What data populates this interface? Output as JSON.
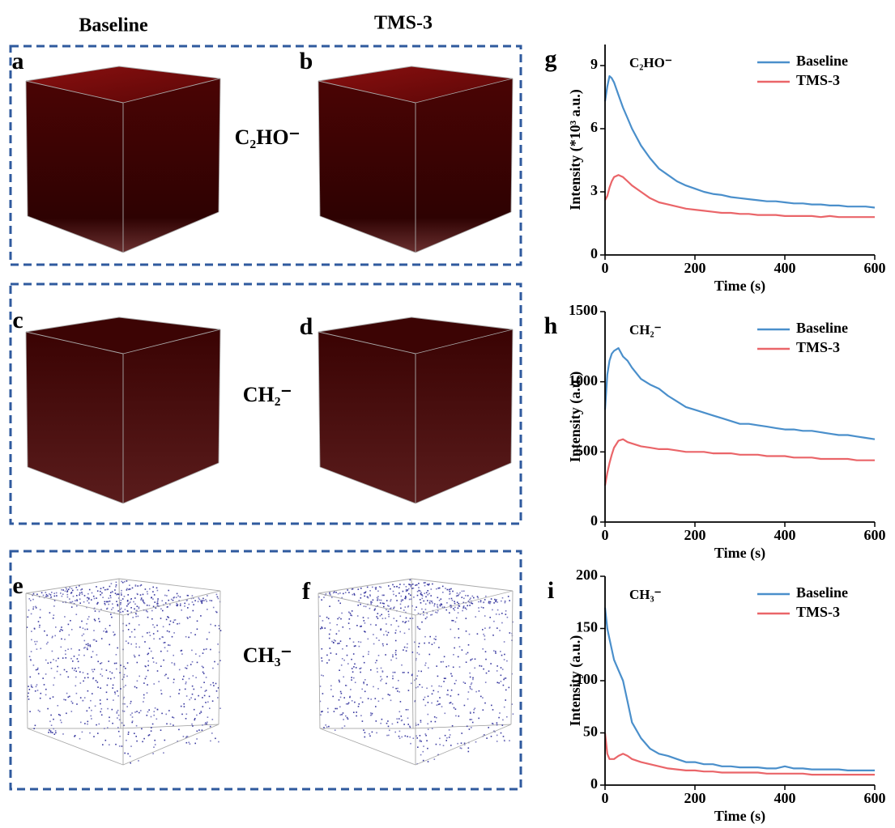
{
  "column_headers": [
    "Baseline",
    "TMS-3"
  ],
  "panels": [
    "a",
    "b",
    "c",
    "d",
    "e",
    "f"
  ],
  "ions": [
    "C₂HO⁻",
    "CH₂⁻",
    "CH₃⁻"
  ],
  "chart_data": [
    {
      "type": "line",
      "panel": "g",
      "annotation": "C₂HO⁻",
      "xlabel": "Time (s)",
      "ylabel": "Intensity (*10³ a.u.)",
      "x": [
        0,
        5,
        10,
        15,
        20,
        30,
        40,
        50,
        60,
        80,
        100,
        120,
        140,
        160,
        180,
        200,
        220,
        240,
        260,
        280,
        300,
        320,
        340,
        360,
        380,
        400,
        420,
        440,
        460,
        480,
        500,
        520,
        540,
        560,
        580,
        600
      ],
      "series": [
        {
          "name": "Baseline",
          "color": "#4a8fcb",
          "values": [
            7.3,
            8.0,
            8.5,
            8.4,
            8.2,
            7.6,
            7.0,
            6.5,
            6.0,
            5.2,
            4.6,
            4.1,
            3.8,
            3.5,
            3.3,
            3.15,
            3.0,
            2.9,
            2.85,
            2.75,
            2.7,
            2.65,
            2.6,
            2.55,
            2.55,
            2.5,
            2.45,
            2.45,
            2.4,
            2.4,
            2.35,
            2.35,
            2.3,
            2.3,
            2.3,
            2.25
          ]
        },
        {
          "name": "TMS-3",
          "color": "#ea6569",
          "values": [
            2.6,
            2.8,
            3.2,
            3.5,
            3.7,
            3.8,
            3.7,
            3.5,
            3.3,
            3.0,
            2.7,
            2.5,
            2.4,
            2.3,
            2.2,
            2.15,
            2.1,
            2.05,
            2.0,
            2.0,
            1.95,
            1.95,
            1.9,
            1.9,
            1.9,
            1.85,
            1.85,
            1.85,
            1.85,
            1.8,
            1.85,
            1.8,
            1.8,
            1.8,
            1.8,
            1.8
          ]
        }
      ],
      "xlim": [
        0,
        600
      ],
      "xticks": [
        0,
        200,
        400,
        600
      ],
      "ylim": [
        0,
        10
      ],
      "yticks": [
        0,
        3,
        6,
        9
      ],
      "legend": "upper right"
    },
    {
      "type": "line",
      "panel": "h",
      "annotation": "CH₂⁻",
      "xlabel": "Time (s)",
      "ylabel": "Intensity (a.u.)",
      "x": [
        0,
        5,
        10,
        15,
        20,
        30,
        40,
        50,
        60,
        80,
        100,
        120,
        140,
        160,
        180,
        200,
        220,
        240,
        260,
        280,
        300,
        320,
        340,
        360,
        380,
        400,
        420,
        440,
        460,
        480,
        500,
        520,
        540,
        560,
        580,
        600
      ],
      "series": [
        {
          "name": "Baseline",
          "color": "#4a8fcb",
          "values": [
            800,
            1050,
            1150,
            1200,
            1220,
            1240,
            1180,
            1150,
            1100,
            1020,
            980,
            950,
            900,
            860,
            820,
            800,
            780,
            760,
            740,
            720,
            700,
            700,
            690,
            680,
            670,
            660,
            660,
            650,
            650,
            640,
            630,
            620,
            620,
            610,
            600,
            590
          ]
        },
        {
          "name": "TMS-3",
          "color": "#ea6569",
          "values": [
            260,
            350,
            420,
            480,
            530,
            580,
            590,
            570,
            560,
            540,
            530,
            520,
            520,
            510,
            500,
            500,
            500,
            490,
            490,
            490,
            480,
            480,
            480,
            470,
            470,
            470,
            460,
            460,
            460,
            450,
            450,
            450,
            450,
            440,
            440,
            440
          ]
        }
      ],
      "xlim": [
        0,
        600
      ],
      "xticks": [
        0,
        200,
        400,
        600
      ],
      "ylim": [
        0,
        1500
      ],
      "yticks": [
        0,
        500,
        1000,
        1500
      ],
      "legend": "upper right"
    },
    {
      "type": "line",
      "panel": "i",
      "annotation": "CH₃⁻",
      "xlabel": "Time (s)",
      "ylabel": "Intensity (a.u.)",
      "x": [
        0,
        5,
        10,
        15,
        20,
        30,
        40,
        50,
        60,
        80,
        100,
        120,
        140,
        160,
        180,
        200,
        220,
        240,
        260,
        280,
        300,
        320,
        340,
        360,
        380,
        400,
        420,
        440,
        460,
        480,
        500,
        520,
        540,
        560,
        580,
        600
      ],
      "series": [
        {
          "name": "Baseline",
          "color": "#4a8fcb",
          "values": [
            170,
            150,
            140,
            130,
            120,
            110,
            100,
            80,
            60,
            45,
            35,
            30,
            28,
            25,
            22,
            22,
            20,
            20,
            18,
            18,
            17,
            17,
            17,
            16,
            16,
            18,
            16,
            16,
            15,
            15,
            15,
            15,
            14,
            14,
            14,
            14
          ]
        },
        {
          "name": "TMS-3",
          "color": "#ea6569",
          "values": [
            50,
            30,
            25,
            25,
            25,
            28,
            30,
            28,
            25,
            22,
            20,
            18,
            16,
            15,
            14,
            14,
            13,
            13,
            12,
            12,
            12,
            12,
            12,
            11,
            11,
            11,
            11,
            11,
            10,
            10,
            10,
            10,
            10,
            10,
            10,
            10
          ]
        }
      ],
      "xlim": [
        0,
        600
      ],
      "xticks": [
        0,
        200,
        400,
        600
      ],
      "ylim": [
        0,
        200
      ],
      "yticks": [
        0,
        50,
        100,
        150,
        200
      ],
      "legend": "upper right"
    }
  ]
}
